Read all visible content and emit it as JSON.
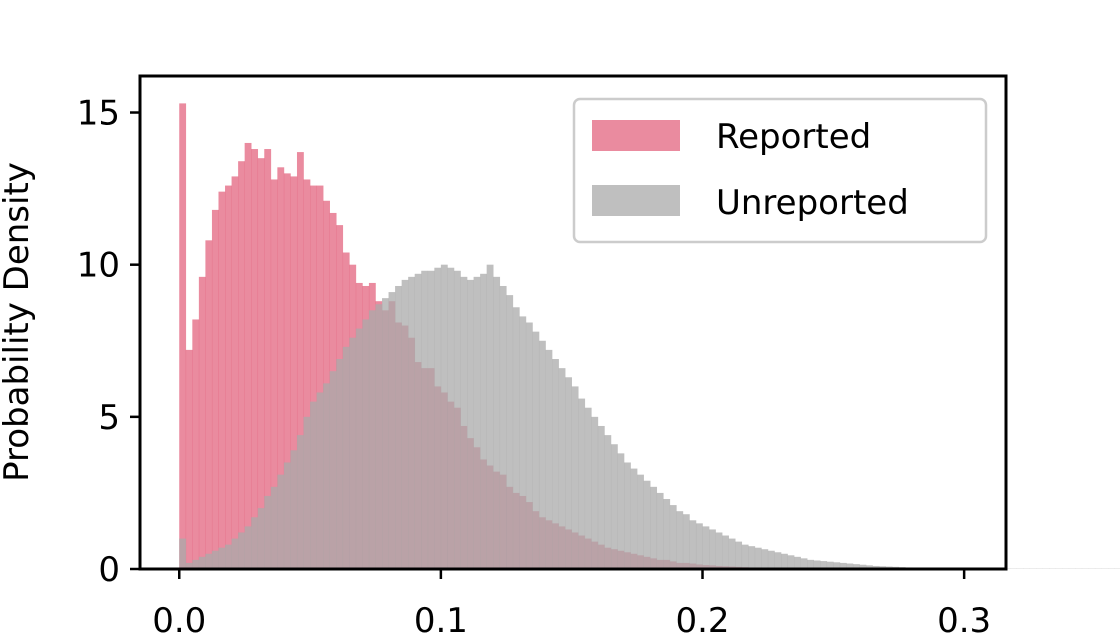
{
  "chart_data": {
    "type": "histogram",
    "xlabel": "",
    "ylabel": "Probability Density",
    "xlim": [
      -0.015,
      0.316
    ],
    "ylim": [
      0,
      16.2
    ],
    "x_ticks": [
      {
        "value": 0.0,
        "label": "0.0"
      },
      {
        "value": 0.1,
        "label": "0.1"
      },
      {
        "value": 0.2,
        "label": "0.2"
      },
      {
        "value": 0.3,
        "label": "0.3"
      }
    ],
    "y_ticks": [
      {
        "value": 0,
        "label": "0"
      },
      {
        "value": 5,
        "label": "5"
      },
      {
        "value": 10,
        "label": "10"
      },
      {
        "value": 15,
        "label": "15"
      }
    ],
    "legend_position": "top-right",
    "grid": false,
    "bin_start": 0.0,
    "bin_width": 0.0025,
    "series": [
      {
        "name": "Reported",
        "color": "#e05472",
        "opacity": 0.68,
        "values": [
          15.3,
          7.2,
          8.2,
          9.6,
          10.8,
          11.8,
          12.4,
          12.6,
          12.9,
          13.4,
          14.0,
          13.8,
          13.5,
          13.8,
          12.8,
          13.2,
          13.0,
          12.9,
          13.7,
          12.8,
          12.6,
          12.6,
          12.1,
          11.7,
          11.3,
          10.4,
          10.0,
          9.4,
          9.3,
          9.4,
          8.8,
          8.5,
          8.8,
          8.1,
          8.0,
          7.6,
          6.8,
          6.6,
          6.6,
          6.0,
          5.8,
          5.5,
          5.3,
          4.7,
          4.3,
          4.0,
          3.6,
          3.4,
          3.2,
          3.1,
          2.7,
          2.5,
          2.4,
          2.2,
          1.9,
          1.7,
          1.6,
          1.5,
          1.4,
          1.3,
          1.2,
          1.1,
          1.0,
          0.9,
          0.8,
          0.7,
          0.65,
          0.6,
          0.55,
          0.5,
          0.45,
          0.4,
          0.35,
          0.3,
          0.3,
          0.25,
          0.2,
          0.2,
          0.18,
          0.15,
          0.13,
          0.12,
          0.1,
          0.09,
          0.08,
          0.07,
          0.06,
          0.05,
          0.05,
          0.04,
          0.03,
          0.03,
          0.02,
          0.02,
          0.02,
          0.01,
          0.01,
          0.01,
          0.01,
          0.01
        ]
      },
      {
        "name": "Unreported",
        "color": "#a9a9a9",
        "opacity": 0.75,
        "values": [
          1.0,
          0.2,
          0.3,
          0.4,
          0.5,
          0.6,
          0.7,
          0.8,
          1.0,
          1.2,
          1.4,
          1.7,
          2.0,
          2.4,
          2.7,
          3.1,
          3.5,
          3.9,
          4.4,
          5.0,
          5.5,
          5.8,
          6.1,
          6.5,
          6.9,
          7.3,
          7.6,
          7.9,
          8.2,
          8.5,
          8.7,
          8.9,
          9.1,
          9.3,
          9.5,
          9.6,
          9.7,
          9.8,
          9.8,
          9.9,
          10.0,
          9.9,
          9.8,
          9.6,
          9.5,
          9.6,
          9.7,
          10.0,
          9.6,
          9.3,
          9.0,
          8.6,
          8.3,
          8.1,
          7.8,
          7.5,
          7.2,
          6.9,
          6.6,
          6.3,
          6.0,
          5.6,
          5.3,
          5.0,
          4.7,
          4.4,
          4.1,
          3.8,
          3.5,
          3.3,
          3.1,
          2.9,
          2.7,
          2.5,
          2.3,
          2.1,
          1.9,
          1.8,
          1.6,
          1.5,
          1.4,
          1.3,
          1.2,
          1.1,
          1.0,
          0.9,
          0.8,
          0.75,
          0.7,
          0.65,
          0.6,
          0.55,
          0.5,
          0.45,
          0.4,
          0.35,
          0.3,
          0.28,
          0.26,
          0.24,
          0.22,
          0.2,
          0.18,
          0.16,
          0.14,
          0.12,
          0.1,
          0.09,
          0.08,
          0.07,
          0.06,
          0.05,
          0.04,
          0.03,
          0.02,
          0.02,
          0.01,
          0.01,
          0.01,
          0.01,
          0.01,
          0.01,
          0.01,
          0.01,
          0.01,
          0.01,
          0.01,
          0.01,
          0.01,
          0.01,
          0.01,
          0.01,
          0.01,
          0.01,
          0.01,
          0.01,
          0.01,
          0.01,
          0.01,
          0.01,
          0.01,
          0.01,
          0.01,
          0.01,
          0.01,
          0.01,
          0.01,
          0.01,
          0.01,
          0.01,
          0.01,
          0.01,
          0.01,
          0.01,
          0.01,
          0.01,
          0.01,
          0.01,
          0.01,
          0.01,
          0.01,
          0.01,
          0.01,
          0.01,
          0.01,
          0.01,
          0.01,
          0.01,
          0.01,
          0.01,
          0.01,
          0.01,
          0.01,
          0.01,
          0.01,
          0.01,
          0.01,
          0.01,
          0.01,
          0.01,
          0.01,
          0.01,
          0.01,
          0.01,
          0.01,
          0.01,
          0.01,
          0.01,
          0.01,
          0.01,
          0.01,
          0.01,
          0.01,
          0.01,
          0.01,
          0.01,
          0.01,
          0.01,
          0.01,
          0.01,
          0.01,
          0.01,
          0.01,
          0.01,
          0.01,
          0.01,
          0.01,
          0.01,
          0.01,
          0.01,
          0.01,
          0.01,
          0.01,
          0.01,
          0.01,
          0.01,
          0.01,
          0.01,
          0.01,
          0.01,
          0.01,
          0.01,
          0.01,
          0.01,
          0.01,
          0.01,
          0.01
        ]
      }
    ]
  }
}
